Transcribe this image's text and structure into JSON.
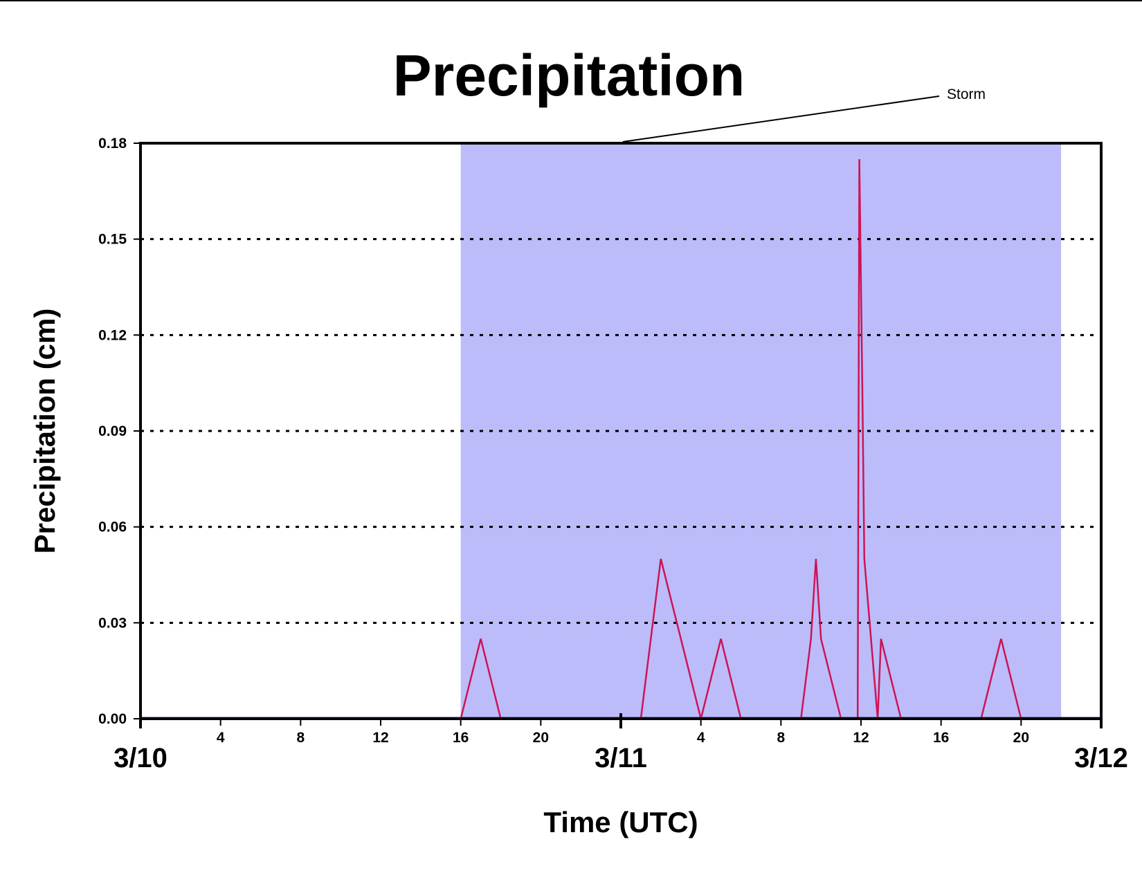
{
  "chart_data": {
    "type": "line",
    "title": "Precipitation",
    "xlabel": "Time (UTC)",
    "ylabel": "Precipitation (cm)",
    "x_unit": "hours",
    "xlim": [
      "3/10 00:00",
      "3/12 00:00"
    ],
    "ylim": [
      0,
      0.18
    ],
    "y_ticks": [
      "0.00",
      "0.03",
      "0.06",
      "0.09",
      "0.12",
      "0.15",
      "0.18"
    ],
    "x_hour_ticks": [
      "4",
      "8",
      "12",
      "16",
      "20",
      "4",
      "8",
      "12",
      "16",
      "20"
    ],
    "x_hour_tick_times": [
      "3/10 04:00",
      "3/10 08:00",
      "3/10 12:00",
      "3/10 16:00",
      "3/10 20:00",
      "3/11 04:00",
      "3/11 08:00",
      "3/11 12:00",
      "3/11 16:00",
      "3/11 20:00"
    ],
    "day_labels": [
      "3/10",
      "3/11",
      "3/12"
    ],
    "day_label_times": [
      "3/10 00:00",
      "3/11 00:00",
      "3/12 00:00"
    ],
    "grid": "horizontal dotted",
    "shaded_region": {
      "label": "Storm",
      "x_start": "3/10 16:00",
      "x_end": "3/11 22:00",
      "color": "#bcbcfa"
    },
    "annotation": {
      "text": "Storm"
    },
    "series": [
      {
        "color": "#cc1455",
        "x": [
          "3/10 00:00",
          "3/10 16:00",
          "3/10 17:00",
          "3/10 18:00",
          "3/11 01:00",
          "3/11 02:00",
          "3/11 04:00",
          "3/11 05:00",
          "3/11 06:00",
          "3/11 09:00",
          "3/11 09:30",
          "3/11 09:45",
          "3/11 10:00",
          "3/11 11:00",
          "3/11 11:50",
          "3/11 11:55",
          "3/11 12:00",
          "3/11 12:05",
          "3/11 12:10",
          "3/11 12:50",
          "3/11 13:00",
          "3/11 14:00",
          "3/11 18:00",
          "3/11 19:00",
          "3/11 20:00",
          "3/12 00:00"
        ],
        "values": [
          0,
          0,
          0.025,
          0,
          0,
          0.05,
          0,
          0.025,
          0,
          0,
          0.025,
          0.05,
          0.025,
          0,
          0,
          0.175,
          0.135,
          0.095,
          0.05,
          0,
          0.025,
          0,
          0,
          0.025,
          0,
          0
        ]
      }
    ]
  },
  "colors": {
    "series": "#cc1455",
    "storm_band": "#bcbcfa",
    "axis": "#000000",
    "baseline": "#1a2a8a"
  }
}
